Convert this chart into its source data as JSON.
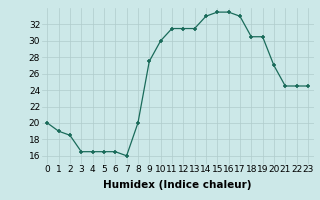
{
  "x": [
    0,
    1,
    2,
    3,
    4,
    5,
    6,
    7,
    8,
    9,
    10,
    11,
    12,
    13,
    14,
    15,
    16,
    17,
    18,
    19,
    20,
    21,
    22,
    23
  ],
  "y": [
    20,
    19,
    18.5,
    16.5,
    16.5,
    16.5,
    16.5,
    16,
    20,
    27.5,
    30,
    31.5,
    31.5,
    31.5,
    33,
    33.5,
    33.5,
    33,
    30.5,
    30.5,
    27,
    24.5,
    24.5,
    24.5
  ],
  "line_color": "#1a6b5a",
  "marker_color": "#1a6b5a",
  "bg_color": "#cce8e8",
  "grid_color": "#b0cccc",
  "xlabel": "Humidex (Indice chaleur)",
  "xlim": [
    -0.5,
    23.5
  ],
  "ylim": [
    15,
    34
  ],
  "yticks": [
    16,
    18,
    20,
    22,
    24,
    26,
    28,
    30,
    32
  ],
  "xticks": [
    0,
    1,
    2,
    3,
    4,
    5,
    6,
    7,
    8,
    9,
    10,
    11,
    12,
    13,
    14,
    15,
    16,
    17,
    18,
    19,
    20,
    21,
    22,
    23
  ],
  "tick_label_size": 6.5,
  "xlabel_size": 7.5,
  "xlabel_weight": "bold"
}
